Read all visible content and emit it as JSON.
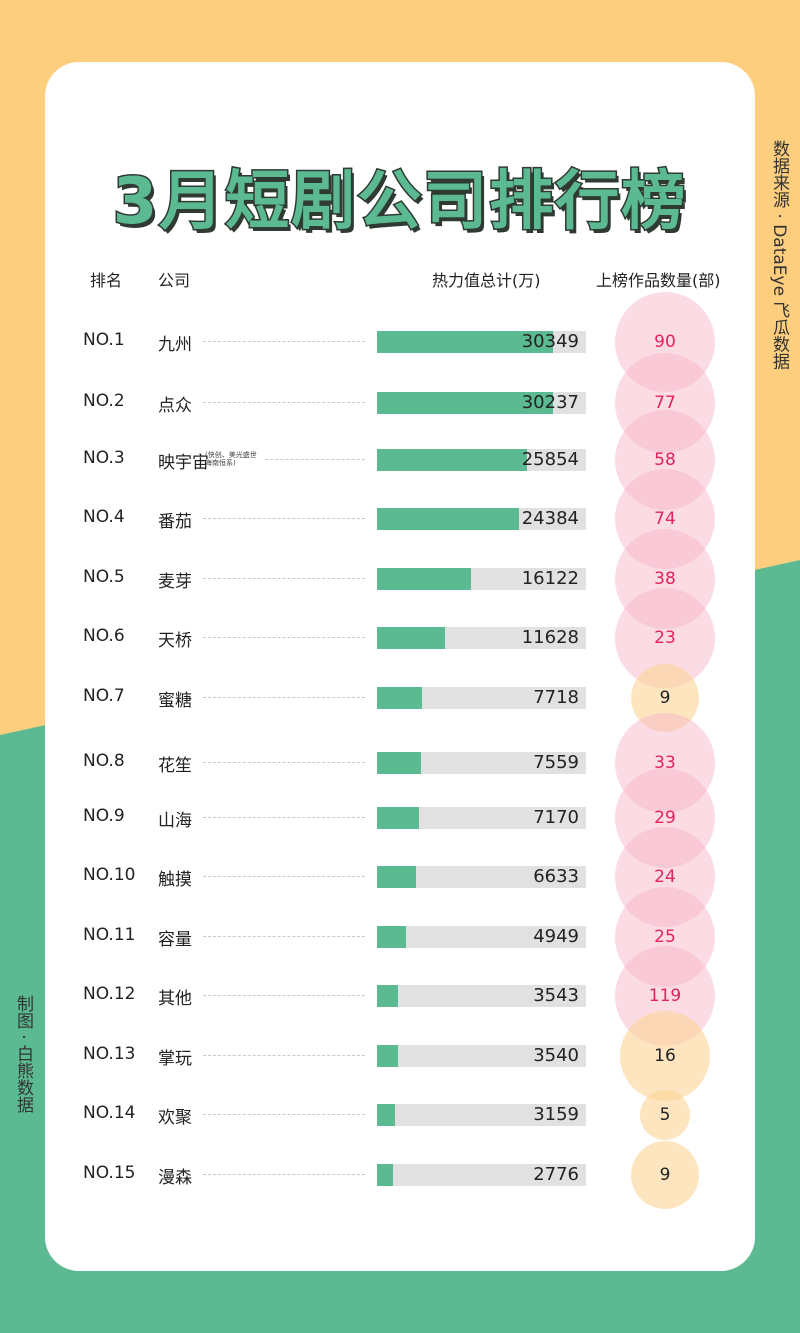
{
  "title": "3月短剧公司排行榜",
  "source": "数据来源 · DataEye 飞瓜数据",
  "maker": "制图 · 白熊数据",
  "colors": {
    "bg_top": "#fdce7d",
    "bg_bottom": "#5bba91",
    "bar_fill": "#5bba91",
    "bar_track": "#e1e1e1",
    "bubble_big": "#f7b2c5",
    "bubble_small": "#fcd496",
    "count_big": "#e1245a",
    "count_small": "#222222"
  },
  "chart_data": {
    "type": "bar",
    "columns": {
      "rank": "排名",
      "company": "公司",
      "heat": "热力值总计(万)",
      "count": "上榜作品数量(部)"
    },
    "ranks": [
      "NO.1",
      "NO.2",
      "NO.3",
      "NO.4",
      "NO.5",
      "NO.6",
      "NO.7",
      "NO.8",
      "NO.9",
      "NO.10",
      "NO.11",
      "NO.12",
      "NO.13",
      "NO.14",
      "NO.15"
    ],
    "categories": [
      "九州",
      "点众",
      "映宇宙",
      "番茄",
      "麦芽",
      "天桥",
      "蜜糖",
      "花笙",
      "山海",
      "触摸",
      "容量",
      "其他",
      "掌玩",
      "欢聚",
      "漫森"
    ],
    "notes": {
      "映宇宙": [
        "(快创、美光盛世",
        "海南恒系)"
      ]
    },
    "series": [
      {
        "name": "热力值总计(万)",
        "values": [
          30349,
          30237,
          25854,
          24384,
          16122,
          11628,
          7718,
          7559,
          7170,
          6633,
          4949,
          3543,
          3540,
          3159,
          2776
        ]
      },
      {
        "name": "上榜作品数量(部)",
        "values": [
          90,
          77,
          58,
          74,
          38,
          23,
          9,
          33,
          29,
          24,
          25,
          119,
          16,
          5,
          9
        ]
      }
    ],
    "xlim": [
      0,
      36000
    ]
  }
}
